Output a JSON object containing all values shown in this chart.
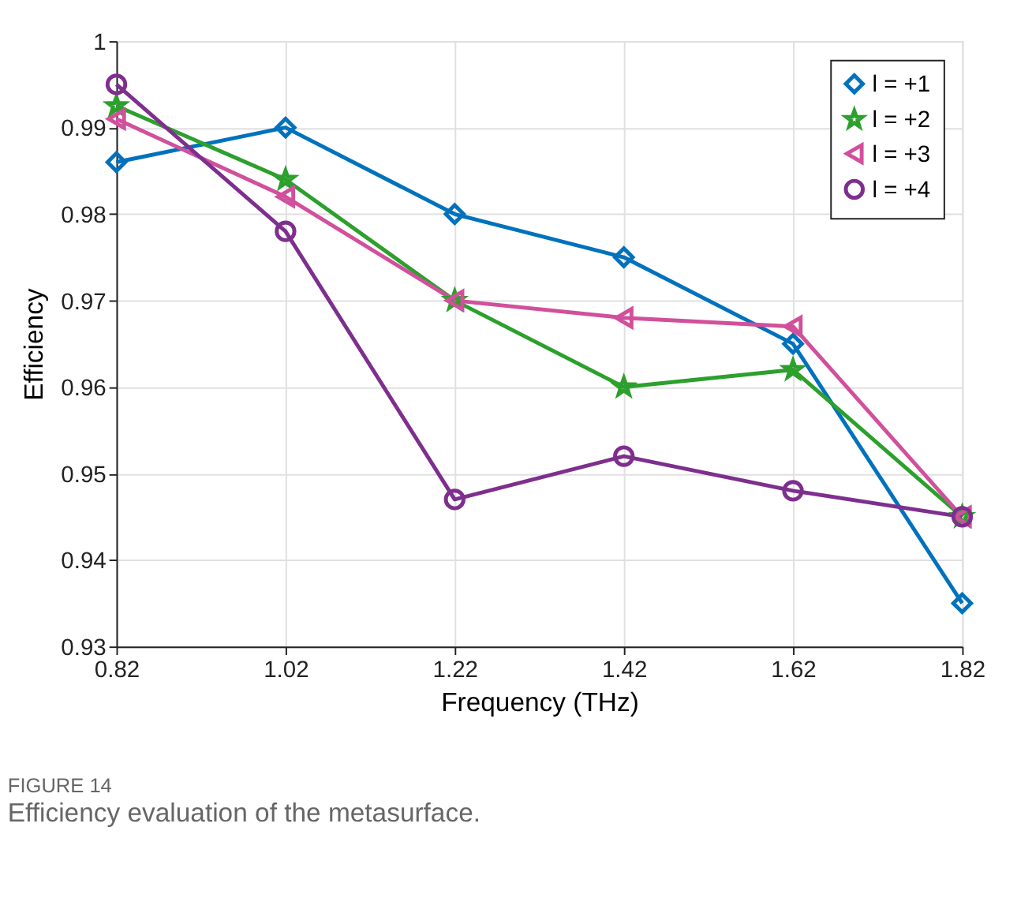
{
  "chart_data": {
    "type": "line",
    "xlabel": "Frequency (THz)",
    "ylabel": "Efficiency",
    "x": [
      0.82,
      1.02,
      1.22,
      1.42,
      1.62,
      1.82
    ],
    "series": [
      {
        "name": "l = +1",
        "color": "#0072bd",
        "marker": "diamond",
        "values": [
          0.986,
          0.99,
          0.98,
          0.975,
          0.965,
          0.935
        ]
      },
      {
        "name": "l = +2",
        "color": "#2ca02c",
        "marker": "star",
        "values": [
          0.9925,
          0.984,
          0.97,
          0.96,
          0.962,
          0.945
        ]
      },
      {
        "name": "l = +3",
        "color": "#d1509c",
        "marker": "triangle",
        "values": [
          0.991,
          0.982,
          0.97,
          0.968,
          0.967,
          0.945
        ]
      },
      {
        "name": "l = +4",
        "color": "#7e2f8e",
        "marker": "circle",
        "values": [
          0.995,
          0.978,
          0.947,
          0.952,
          0.948,
          0.945
        ]
      }
    ],
    "xlim": [
      0.82,
      1.82
    ],
    "xticks": [
      0.82,
      1.02,
      1.22,
      1.42,
      1.62,
      1.82
    ],
    "ylim": [
      0.93,
      1.0
    ],
    "yticks": [
      0.93,
      0.94,
      0.95,
      0.96,
      0.97,
      0.98,
      0.99,
      1
    ],
    "grid": true,
    "legend": "top right",
    "line_style": "solid",
    "annotations": [
      "FIGURE 14",
      "Efficiency evaluation of the metasurface."
    ]
  }
}
